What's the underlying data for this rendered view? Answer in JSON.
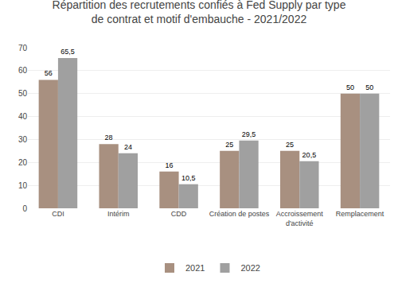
{
  "chart_data": {
    "type": "bar",
    "title": "Répartition des recrutements confiés à Fed Supply par type\nde contrat et motif d'embauche - 2021/2022",
    "categories": [
      "CDI",
      "Intérim",
      "CDD",
      "Création de postes",
      "Accroissement\nd'activité",
      "Remplacement"
    ],
    "series": [
      {
        "name": "2021",
        "color": "#a89080",
        "values": [
          56,
          28,
          16,
          25,
          25,
          50
        ],
        "value_labels": [
          "56",
          "28",
          "16",
          "25",
          "25",
          "50"
        ]
      },
      {
        "name": "2022",
        "color": "#a0a0a0",
        "values": [
          65.5,
          24,
          10.5,
          29.5,
          20.5,
          50
        ],
        "value_labels": [
          "65,5",
          "24",
          "10,5",
          "29,5",
          "20,5",
          "50"
        ]
      }
    ],
    "ylim": [
      0,
      70
    ],
    "yticks": [
      0,
      10,
      20,
      30,
      40,
      50,
      60,
      70
    ],
    "grid": true,
    "legend": "bottom",
    "data_labels": true
  }
}
